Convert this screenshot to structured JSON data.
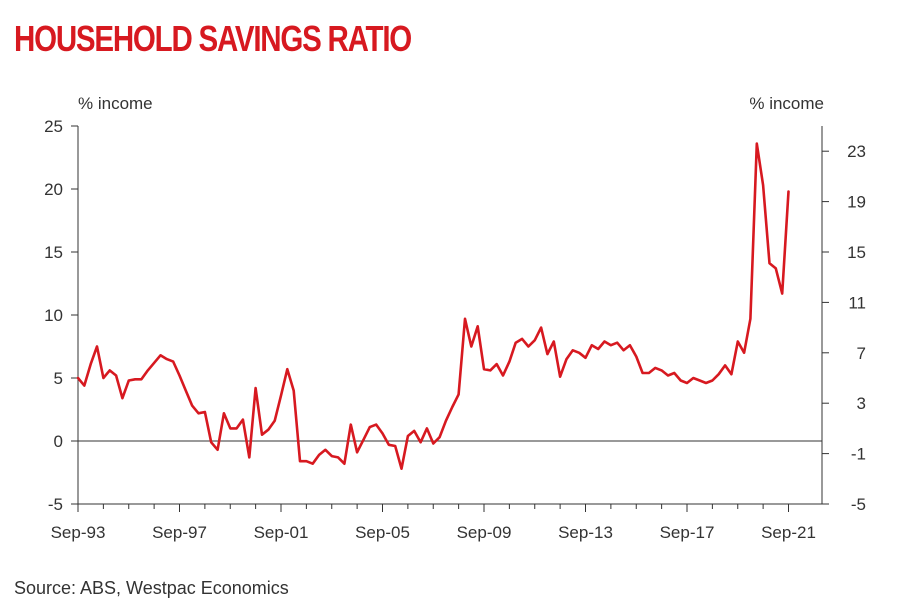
{
  "chart_data": {
    "type": "line",
    "title": "HOUSEHOLD SAVINGS RATIO",
    "y_left_label": "% income",
    "y_right_label": "% income",
    "y_left_range": [
      -5,
      25
    ],
    "y_left_ticks": [
      "25",
      "20",
      "15",
      "10",
      "5",
      "0",
      "-5"
    ],
    "y_right_range": [
      -5,
      25
    ],
    "y_right_ticks": [
      "23",
      "19",
      "15",
      "11",
      "7",
      "3",
      "-1",
      "-5"
    ],
    "x_range": [
      "Sep-93",
      "Sep-21"
    ],
    "x_ticks": [
      "Sep-93",
      "Sep-97",
      "Sep-01",
      "Sep-05",
      "Sep-09",
      "Sep-13",
      "Sep-17",
      "Sep-21"
    ],
    "zero_line": true,
    "grid": false,
    "legend": "none",
    "series_color": "#d71920",
    "series": [
      {
        "x": [
          "Sep-93",
          "Dec-93",
          "Mar-94",
          "Jun-94",
          "Sep-94",
          "Dec-94",
          "Mar-95",
          "Jun-95",
          "Sep-95",
          "Dec-95",
          "Mar-96",
          "Jun-96",
          "Sep-96",
          "Dec-96",
          "Mar-97",
          "Jun-97",
          "Sep-97",
          "Dec-97",
          "Mar-98",
          "Jun-98",
          "Sep-98",
          "Dec-98",
          "Mar-99",
          "Jun-99",
          "Sep-99",
          "Dec-99",
          "Mar-00",
          "Jun-00",
          "Sep-00",
          "Dec-00",
          "Mar-01",
          "Jun-01",
          "Sep-01",
          "Dec-01",
          "Mar-02",
          "Jun-02",
          "Sep-02",
          "Dec-02",
          "Mar-03",
          "Jun-03",
          "Sep-03",
          "Dec-03",
          "Mar-04",
          "Jun-04",
          "Sep-04",
          "Dec-04",
          "Mar-05",
          "Jun-05",
          "Sep-05",
          "Dec-05",
          "Mar-06",
          "Jun-06",
          "Sep-06",
          "Dec-06",
          "Mar-07",
          "Jun-07",
          "Sep-07",
          "Dec-07",
          "Mar-08",
          "Jun-08",
          "Sep-08",
          "Dec-08",
          "Mar-09",
          "Jun-09",
          "Sep-09",
          "Dec-09",
          "Mar-10",
          "Jun-10",
          "Sep-10",
          "Dec-10",
          "Mar-11",
          "Jun-11",
          "Sep-11",
          "Dec-11",
          "Mar-12",
          "Jun-12",
          "Sep-12",
          "Dec-12",
          "Mar-13",
          "Jun-13",
          "Sep-13",
          "Dec-13",
          "Mar-14",
          "Jun-14",
          "Sep-14",
          "Dec-14",
          "Mar-15",
          "Jun-15",
          "Sep-15",
          "Dec-15",
          "Mar-16",
          "Jun-16",
          "Sep-16",
          "Dec-16",
          "Mar-17",
          "Jun-17",
          "Sep-17",
          "Dec-17",
          "Mar-18",
          "Jun-18",
          "Sep-18",
          "Dec-18",
          "Mar-19",
          "Jun-19",
          "Sep-19",
          "Dec-19",
          "Mar-20",
          "Jun-20",
          "Sep-20",
          "Dec-20",
          "Mar-21",
          "Jun-21",
          "Sep-21"
        ],
        "values": [
          5.0,
          4.4,
          6.1,
          7.5,
          5.0,
          5.6,
          5.2,
          3.4,
          4.8,
          4.9,
          4.9,
          5.6,
          6.2,
          6.8,
          6.5,
          6.3,
          5.2,
          4.0,
          2.8,
          2.2,
          2.3,
          -0.1,
          -0.7,
          2.2,
          1.0,
          1.0,
          1.7,
          -1.3,
          4.2,
          0.5,
          0.9,
          1.6,
          3.6,
          5.7,
          4.0,
          -1.6,
          -1.6,
          -1.8,
          -1.1,
          -0.7,
          -1.2,
          -1.3,
          -1.8,
          1.3,
          -0.9,
          0.1,
          1.1,
          1.3,
          0.6,
          -0.3,
          -0.4,
          -2.2,
          0.4,
          0.8,
          -0.1,
          1.0,
          -0.2,
          0.3,
          1.6,
          2.7,
          3.7,
          9.7,
          7.5,
          9.1,
          5.7,
          5.6,
          6.1,
          5.2,
          6.3,
          7.8,
          8.1,
          7.5,
          8.0,
          9.0,
          6.9,
          7.9,
          5.1,
          6.5,
          7.2,
          7.0,
          6.6,
          7.6,
          7.3,
          7.9,
          7.6,
          7.8,
          7.2,
          7.6,
          6.7,
          5.4,
          5.4,
          5.8,
          5.6,
          5.2,
          5.4,
          4.8,
          4.6,
          5.0,
          4.8,
          4.6,
          4.8,
          5.3,
          6.0,
          5.3,
          7.9,
          7.0,
          9.7,
          23.6,
          20.3,
          14.1,
          13.7,
          11.7,
          19.8
        ]
      }
    ]
  },
  "footer": {
    "source": "Source: ABS, Westpac Economics"
  }
}
